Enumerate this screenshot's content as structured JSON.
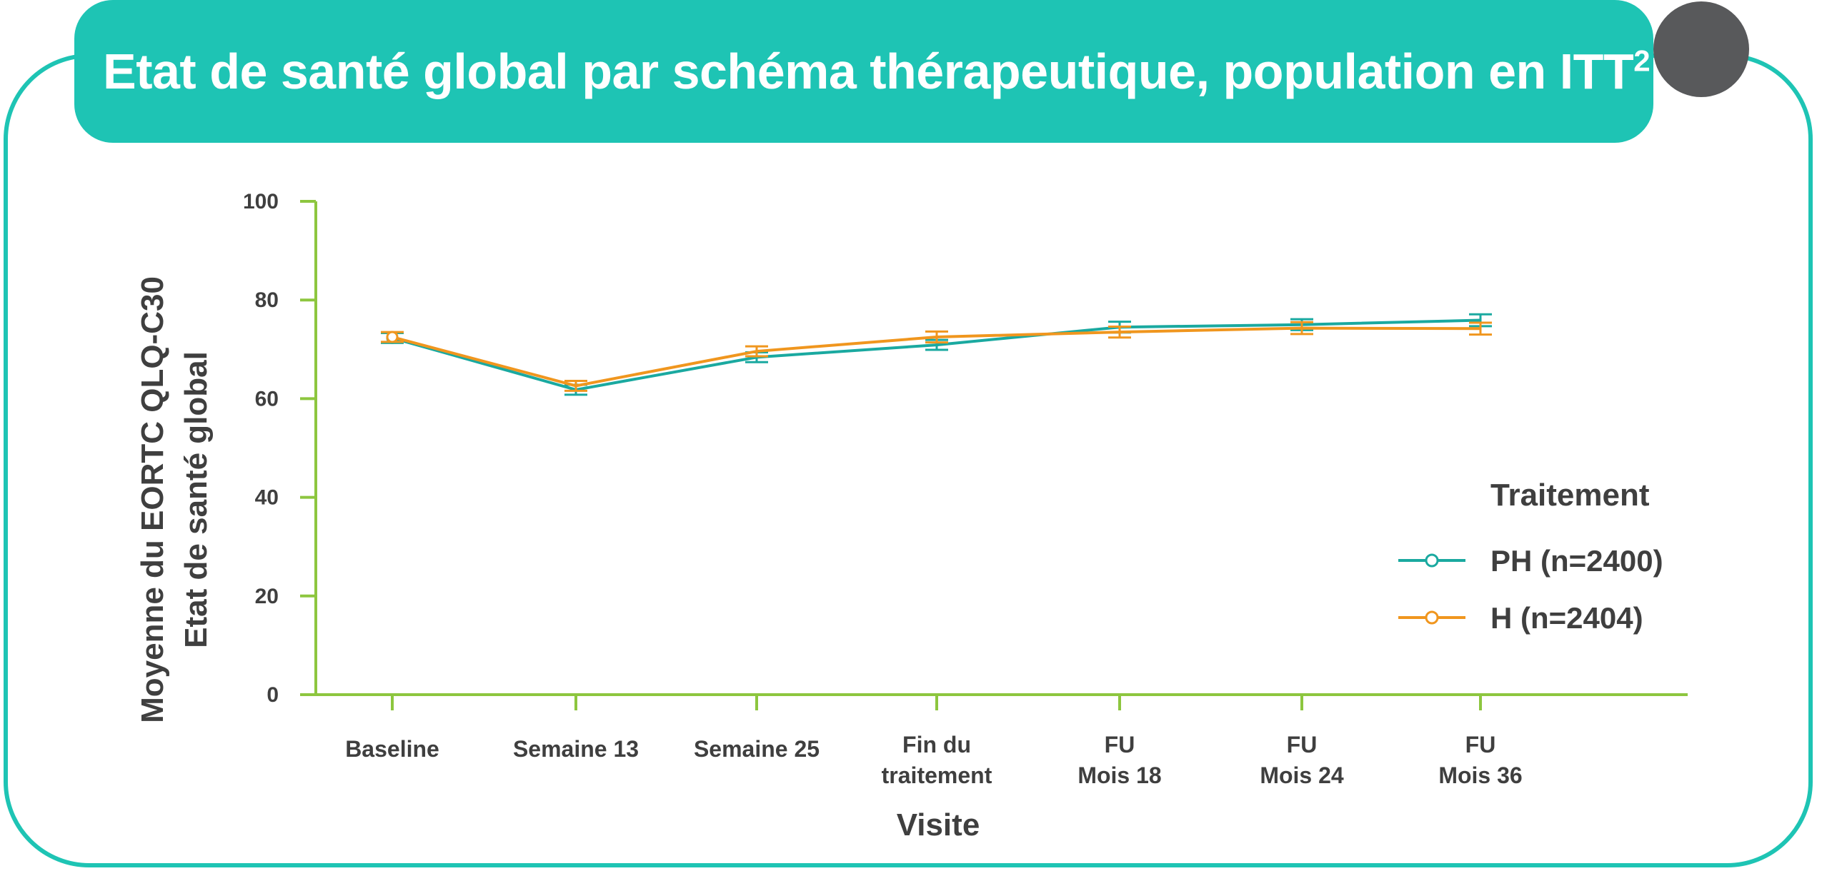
{
  "title": {
    "main": "Etat de santé global par schéma thérapeutique, population en ITT",
    "superscript": "2"
  },
  "chart_data": {
    "type": "line",
    "ylabel_line1": "Moyenne du EORTC QLQ-C30",
    "ylabel_line2": "Etat de santé global",
    "xlabel": "Visite",
    "ylim": [
      0,
      100
    ],
    "yticks": [
      "0",
      "20",
      "40",
      "60",
      "80",
      "100"
    ],
    "categories": [
      [
        "Baseline"
      ],
      [
        "Semaine 13"
      ],
      [
        "Semaine 25"
      ],
      [
        "Fin du",
        "traitement"
      ],
      [
        "FU",
        "Mois 18"
      ],
      [
        "FU",
        "Mois 24"
      ],
      [
        "FU",
        "Mois 36"
      ]
    ],
    "legend_title": "Traitement",
    "legend_position": "right",
    "grid": false,
    "series": [
      {
        "name": "PH (n=2400)",
        "color": "#1aa9a0",
        "values": [
          72.3,
          61.8,
          68.4,
          70.9,
          74.5,
          75.0,
          75.9
        ],
        "err": [
          1.0,
          1.0,
          1.0,
          1.0,
          1.1,
          1.1,
          1.2
        ]
      },
      {
        "name": "H (n=2404)",
        "color": "#f0961e",
        "values": [
          72.5,
          62.6,
          69.6,
          72.5,
          73.5,
          74.3,
          74.2
        ],
        "err": [
          1.0,
          1.0,
          1.0,
          1.1,
          1.1,
          1.2,
          1.2
        ]
      }
    ]
  },
  "colors": {
    "frame": "#1ec4b4",
    "banner": "#1ec4b4",
    "axis": "#8dc63f",
    "text": "#3f3f3f",
    "corner": "#58595b"
  }
}
